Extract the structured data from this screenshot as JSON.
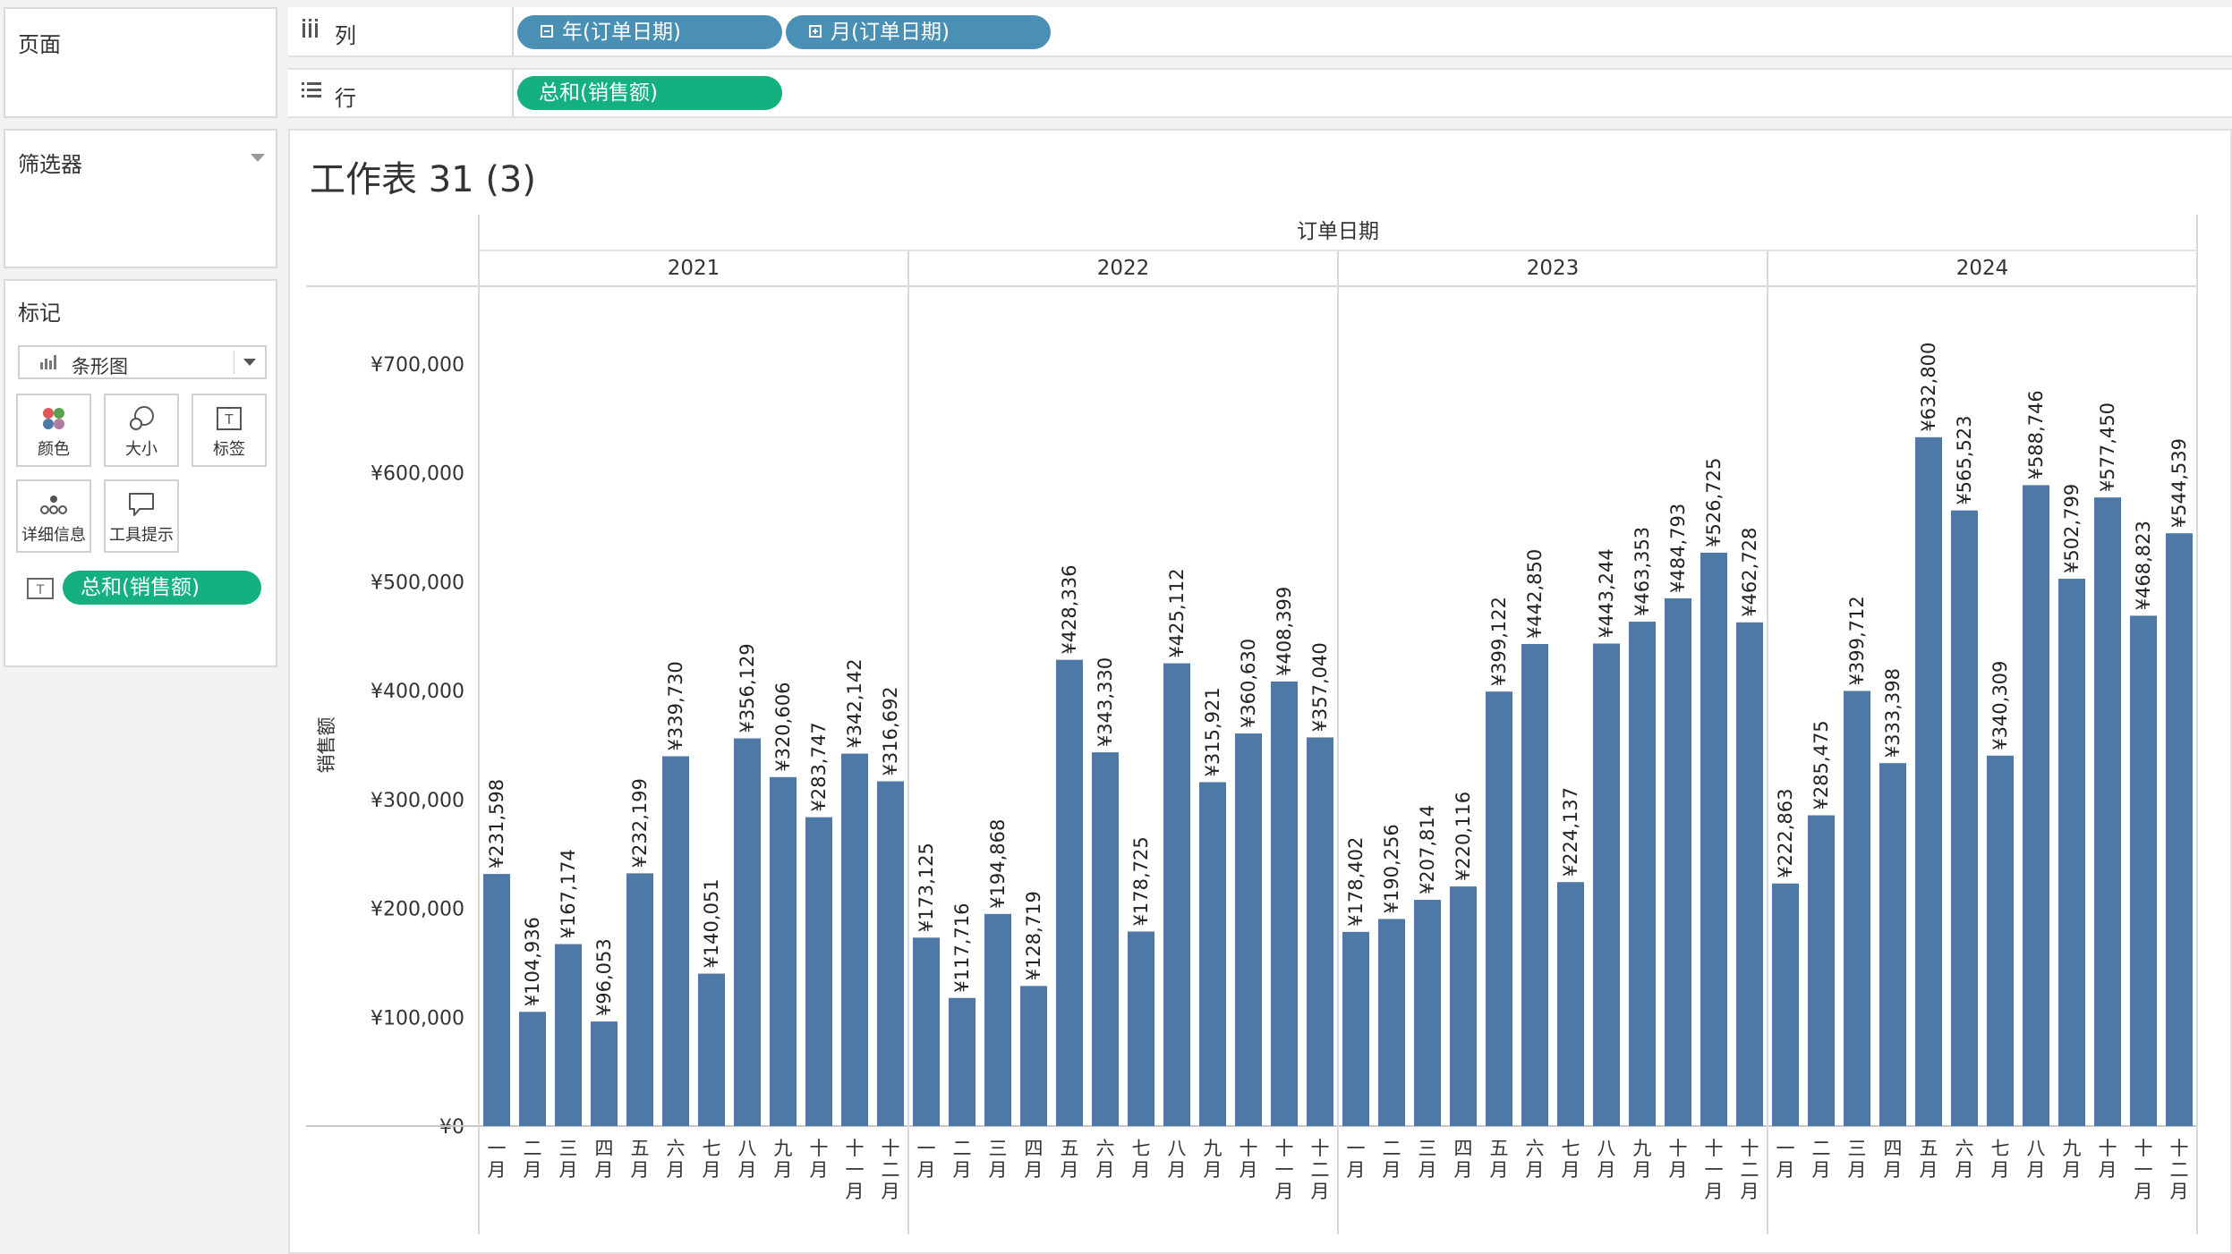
{
  "cards": {
    "pages": {
      "title": "页面"
    },
    "filters": {
      "title": "筛选器"
    },
    "marks": {
      "title": "标记",
      "mark_type": "条形图",
      "buttons": [
        {
          "label": "颜色",
          "icon": "color-icon"
        },
        {
          "label": "大小",
          "icon": "size-icon"
        },
        {
          "label": "标签",
          "icon": "label-icon"
        },
        {
          "label": "详细信息",
          "icon": "detail-icon"
        },
        {
          "label": "工具提示",
          "icon": "tooltip-icon"
        }
      ],
      "label_field": "总和(销售额)"
    }
  },
  "shelves": {
    "columns": {
      "label": "列",
      "pills": [
        "年(订单日期)",
        "月(订单日期)"
      ]
    },
    "rows": {
      "label": "行",
      "pills": [
        "总和(销售额)"
      ]
    }
  },
  "sheet": {
    "title": "工作表 31 (3)"
  },
  "colors": {
    "bar": "#4e79a7",
    "pill_blue": "#4a90b5",
    "pill_green": "#14b07f"
  },
  "chart_data": {
    "type": "bar",
    "title": "工作表 31 (3)",
    "header": "订单日期",
    "ylabel": "销售额",
    "ylim": [
      0,
      700000
    ],
    "yticks": [
      0,
      100000,
      200000,
      300000,
      400000,
      500000,
      600000,
      700000
    ],
    "ytick_labels": [
      "¥0",
      "¥100,000",
      "¥200,000",
      "¥300,000",
      "¥400,000",
      "¥500,000",
      "¥600,000",
      "¥700,000"
    ],
    "categories": [
      "一月",
      "二月",
      "三月",
      "四月",
      "五月",
      "六月",
      "七月",
      "八月",
      "九月",
      "十月",
      "十一月",
      "十二月"
    ],
    "panels": [
      {
        "year": "2021",
        "values": [
          231598,
          104936,
          167174,
          96053,
          232199,
          339730,
          140051,
          356129,
          320606,
          283747,
          342142,
          316692
        ],
        "labels": [
          "¥231,598",
          "¥104,936",
          "¥167,174",
          "¥96,053",
          "¥232,199",
          "¥339,730",
          "¥140,051",
          "¥356,129",
          "¥320,606",
          "¥283,747",
          "¥342,142",
          "¥316,692"
        ]
      },
      {
        "year": "2022",
        "values": [
          173125,
          117716,
          194868,
          128719,
          428336,
          343330,
          178725,
          425112,
          315921,
          360630,
          408399,
          357040
        ],
        "labels": [
          "¥173,125",
          "¥117,716",
          "¥194,868",
          "¥128,719",
          "¥428,336",
          "¥343,330",
          "¥178,725",
          "¥425,112",
          "¥315,921",
          "¥360,630",
          "¥408,399",
          "¥357,040"
        ]
      },
      {
        "year": "2023",
        "values": [
          178402,
          190256,
          207814,
          220116,
          399122,
          442850,
          224137,
          443244,
          463353,
          484793,
          526725,
          462728
        ],
        "labels": [
          "¥178,402",
          "¥190,256",
          "¥207,814",
          "¥220,116",
          "¥399,122",
          "¥442,850",
          "¥224,137",
          "¥443,244",
          "¥463,353",
          "¥484,793",
          "¥526,725",
          "¥462,728"
        ]
      },
      {
        "year": "2024",
        "values": [
          222863,
          285475,
          399712,
          333398,
          632800,
          565523,
          340309,
          588746,
          502799,
          577450,
          468823,
          544539
        ],
        "labels": [
          "¥222,863",
          "¥285,475",
          "¥399,712",
          "¥333,398",
          "¥632,800",
          "¥565,523",
          "¥340,309",
          "¥588,746",
          "¥502,799",
          "¥577,450",
          "¥468,823",
          "¥544,539"
        ]
      }
    ]
  }
}
